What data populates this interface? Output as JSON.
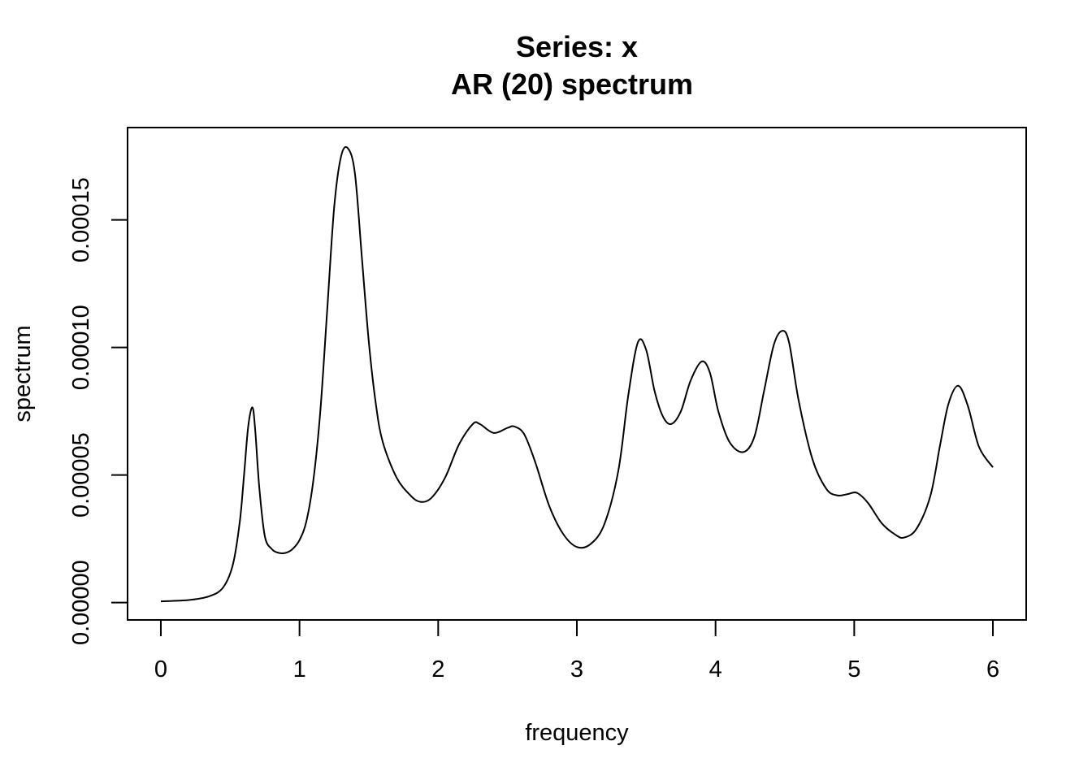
{
  "chart_data": {
    "type": "line",
    "title": "Series: x",
    "subtitle": "AR (20) spectrum",
    "xlabel": "frequency",
    "ylabel": "spectrum",
    "xlim": [
      -0.24,
      6.24
    ],
    "ylim": [
      -6.8e-06,
      0.0001862
    ],
    "grid": false,
    "legend": "none",
    "x_ticks": [
      0,
      1,
      2,
      3,
      4,
      5,
      6
    ],
    "x_tick_labels": [
      "0",
      "1",
      "2",
      "3",
      "4",
      "5",
      "6"
    ],
    "y_ticks": [
      0.0,
      5e-05,
      0.0001,
      0.00015
    ],
    "y_tick_labels": [
      "0.00000",
      "0.00005",
      "0.00010",
      "0.00015"
    ],
    "line_color": "#000000",
    "series": [
      {
        "x": [
          0.0,
          0.2,
          0.35,
          0.45,
          0.52,
          0.57,
          0.6,
          0.63,
          0.66,
          0.68,
          0.71,
          0.75,
          0.8,
          0.85,
          0.9,
          0.95,
          1.0,
          1.05,
          1.1,
          1.15,
          1.2,
          1.25,
          1.3,
          1.35,
          1.4,
          1.45,
          1.5,
          1.55,
          1.6,
          1.7,
          1.8,
          1.87,
          1.95,
          2.05,
          2.15,
          2.25,
          2.3,
          2.4,
          2.5,
          2.55,
          2.62,
          2.7,
          2.8,
          2.9,
          3.0,
          3.1,
          3.2,
          3.3,
          3.37,
          3.44,
          3.5,
          3.56,
          3.62,
          3.68,
          3.75,
          3.82,
          3.9,
          3.96,
          4.02,
          4.1,
          4.2,
          4.28,
          4.35,
          4.42,
          4.48,
          4.53,
          4.6,
          4.7,
          4.8,
          4.88,
          4.95,
          5.02,
          5.1,
          5.2,
          5.3,
          5.36,
          5.45,
          5.55,
          5.62,
          5.68,
          5.75,
          5.82,
          5.9,
          6.0
        ],
        "y": [
          5e-07,
          1e-06,
          2.5e-06,
          6e-06,
          1.5e-05,
          3.2e-05,
          5e-05,
          6.9e-05,
          7.65e-05,
          6.8e-05,
          4.5e-05,
          2.6e-05,
          2.1e-05,
          1.95e-05,
          1.95e-05,
          2.1e-05,
          2.45e-05,
          3.2e-05,
          4.8e-05,
          7.5e-05,
          0.000115,
          0.000155,
          0.000175,
          0.000178,
          0.000168,
          0.000135,
          0.000102,
          7.8e-05,
          6.3e-05,
          4.9e-05,
          4.2e-05,
          3.95e-05,
          4.1e-05,
          4.9e-05,
          6.2e-05,
          7e-05,
          7e-05,
          6.65e-05,
          6.85e-05,
          6.9e-05,
          6.6e-05,
          5.5e-05,
          3.8e-05,
          2.7e-05,
          2.18e-05,
          2.3e-05,
          3.1e-05,
          5.2e-05,
          8.1e-05,
          0.000102,
          9.9e-05,
          8.3e-05,
          7.3e-05,
          7e-05,
          7.5e-05,
          8.7e-05,
          9.45e-05,
          9e-05,
          7.5e-05,
          6.3e-05,
          5.9e-05,
          6.5e-05,
          8.3e-05,
          0.000101,
          0.0001065,
          0.000102,
          7.9e-05,
          5.6e-05,
          4.45e-05,
          4.2e-05,
          4.25e-05,
          4.3e-05,
          3.9e-05,
          3.1e-05,
          2.65e-05,
          2.55e-05,
          2.9e-05,
          4.2e-05,
          6.2e-05,
          7.8e-05,
          8.5e-05,
          7.7e-05,
          6.1e-05,
          5.3e-05
        ]
      }
    ]
  }
}
